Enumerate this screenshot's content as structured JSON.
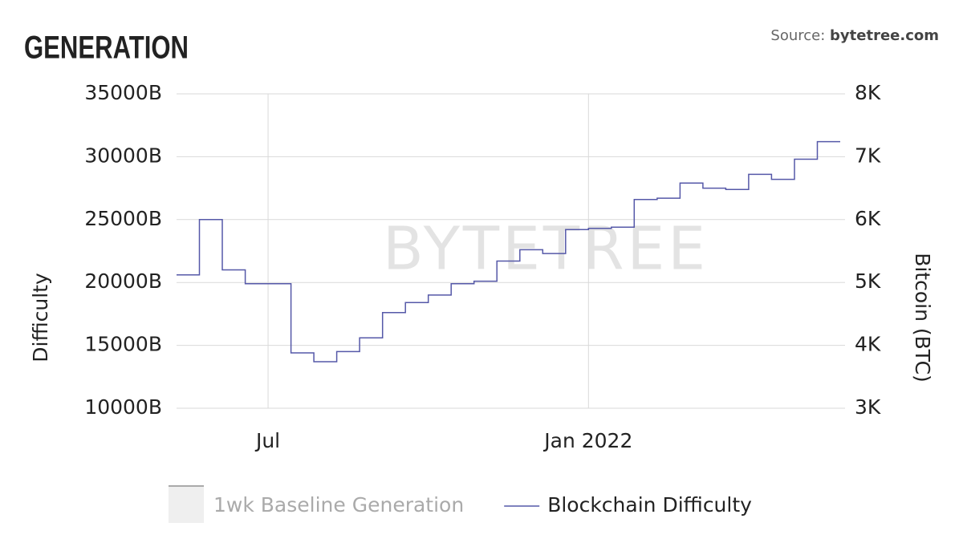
{
  "chart_data": {
    "type": "step",
    "title": "GENERATION",
    "source_label": "Source:",
    "source": "bytetree.com",
    "watermark": "BYTETREE",
    "ylabel": "Difficulty",
    "y2label": "Bitcoin (BTC)",
    "categories": [
      null,
      null,
      null,
      null,
      "Jul",
      null,
      null,
      null,
      null,
      null,
      null,
      null,
      null,
      null,
      null,
      null,
      null,
      null,
      "Jan 2022",
      null,
      null,
      null,
      null,
      null,
      null,
      null,
      null,
      null,
      null
    ],
    "series": [
      {
        "name": "Blockchain Difficulty",
        "color": "#5558a8",
        "values": [
          20600,
          25000,
          21000,
          19900,
          19900,
          14400,
          13700,
          14500,
          15600,
          17600,
          18400,
          19000,
          19900,
          20100,
          21700,
          22600,
          22300,
          24200,
          24300,
          24400,
          26600,
          26700,
          27900,
          27500,
          27400,
          28600,
          28200,
          29800,
          31200
        ]
      }
    ],
    "hidden_series": [
      {
        "name": "1wk Baseline Generation",
        "color": "#efefef"
      }
    ],
    "ylim": [
      10000,
      35000
    ],
    "yticks": [
      {
        "value": 10000,
        "label": "10000B"
      },
      {
        "value": 15000,
        "label": "15000B"
      },
      {
        "value": 20000,
        "label": "20000B"
      },
      {
        "value": 25000,
        "label": "25000B"
      },
      {
        "value": 30000,
        "label": "30000B"
      },
      {
        "value": 35000,
        "label": "35000B"
      }
    ],
    "y2lim": [
      3000,
      8000
    ],
    "y2ticks": [
      {
        "value": 3000,
        "label": "3K"
      },
      {
        "value": 4000,
        "label": "4K"
      },
      {
        "value": 5000,
        "label": "5K"
      },
      {
        "value": 6000,
        "label": "6K"
      },
      {
        "value": 7000,
        "label": "7K"
      },
      {
        "value": 8000,
        "label": "8K"
      }
    ],
    "grid": true
  }
}
